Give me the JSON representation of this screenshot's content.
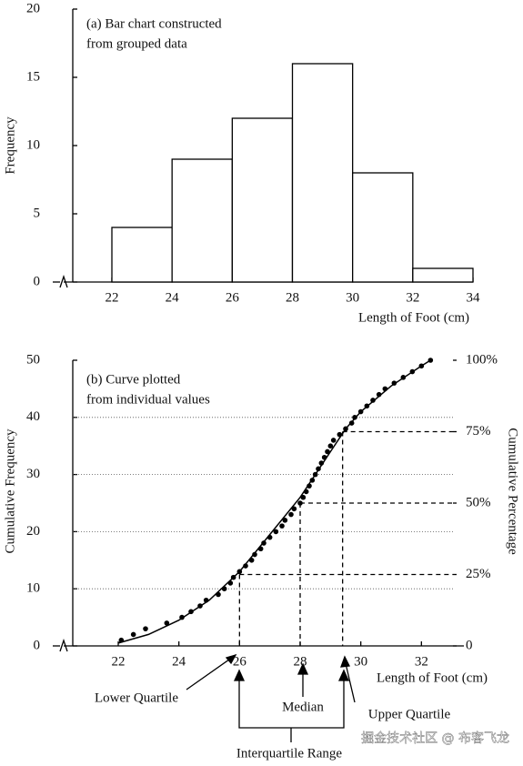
{
  "chart_data": [
    {
      "type": "histogram",
      "title": [
        "(a) Bar chart constructed",
        "from grouped data"
      ],
      "xlabel": "Length of Foot (cm)",
      "ylabel": "Frequency",
      "bins": [
        22,
        24,
        26,
        28,
        30,
        32,
        34
      ],
      "values": [
        4,
        9,
        12,
        16,
        8,
        1
      ],
      "color": "#ffffff",
      "xlim": [
        20.7,
        34
      ],
      "ylim": [
        0,
        20
      ],
      "xticks": [
        22,
        24,
        26,
        28,
        30,
        32,
        34
      ],
      "yticks": [
        0,
        5,
        10,
        15,
        20
      ]
    },
    {
      "type": "scatter",
      "title": [
        "(b) Curve plotted",
        "from individual values"
      ],
      "xlabel": "Length of Foot (cm)",
      "ylabel": "Cumulative Frequency",
      "y2label": "Cumulative Percentage",
      "x": [
        22.1,
        22.5,
        22.9,
        23.6,
        24.1,
        24.4,
        24.7,
        24.9,
        25.3,
        25.5,
        25.7,
        25.8,
        26.0,
        26.2,
        26.4,
        26.5,
        26.7,
        26.8,
        27.0,
        27.2,
        27.4,
        27.5,
        27.7,
        27.8,
        28.0,
        28.1,
        28.2,
        28.3,
        28.4,
        28.5,
        28.6,
        28.7,
        28.8,
        28.9,
        29.0,
        29.1,
        29.3,
        29.5,
        29.7,
        29.8,
        30.0,
        30.2,
        30.4,
        30.6,
        30.8,
        31.1,
        31.4,
        31.7,
        32.0,
        32.3
      ],
      "values": [
        1,
        2,
        3,
        4,
        5,
        6,
        7,
        8,
        9,
        10,
        11,
        12,
        13,
        14,
        15,
        16,
        17,
        18,
        19,
        20,
        21,
        22,
        23,
        24,
        25,
        26,
        27,
        28,
        29,
        30,
        31,
        32,
        33,
        34,
        35,
        36,
        37,
        38,
        39,
        40,
        41,
        42,
        43,
        44,
        45,
        46,
        47,
        48,
        49,
        50
      ],
      "curve": {
        "x": [
          22,
          23,
          24,
          25,
          26,
          27,
          28,
          28.5,
          29,
          29.5,
          30,
          31,
          32,
          32.3
        ],
        "values": [
          0.5,
          2,
          4.5,
          8,
          13,
          19.5,
          26,
          30,
          34,
          38,
          41,
          45.5,
          49,
          50
        ]
      },
      "color": "#000000",
      "quartiles": [
        {
          "label": "Lower Quartile",
          "x": 26,
          "y": 12.5
        },
        {
          "label": "Median",
          "x": 28,
          "y": 25
        },
        {
          "label": "Upper Quartile",
          "x": 29.4,
          "y": 37.5
        }
      ],
      "range_label": "Interquartile Range",
      "grid": true,
      "xlim": [
        20.5,
        33.4
      ],
      "ylim": [
        0,
        50
      ],
      "xticks": [
        22,
        24,
        26,
        28,
        30,
        32
      ],
      "yticks": [
        0,
        10,
        20,
        30,
        40,
        50
      ],
      "y2lim": [
        0,
        100
      ],
      "y2ticks": [
        0,
        {
          "value": 25,
          "label": "25%"
        },
        {
          "value": 50,
          "label": "50%"
        },
        {
          "value": 75,
          "label": "75%"
        },
        {
          "value": 100,
          "label": "100%"
        }
      ]
    }
  ],
  "watermark": "掘金技术社区 @ 布客飞龙"
}
